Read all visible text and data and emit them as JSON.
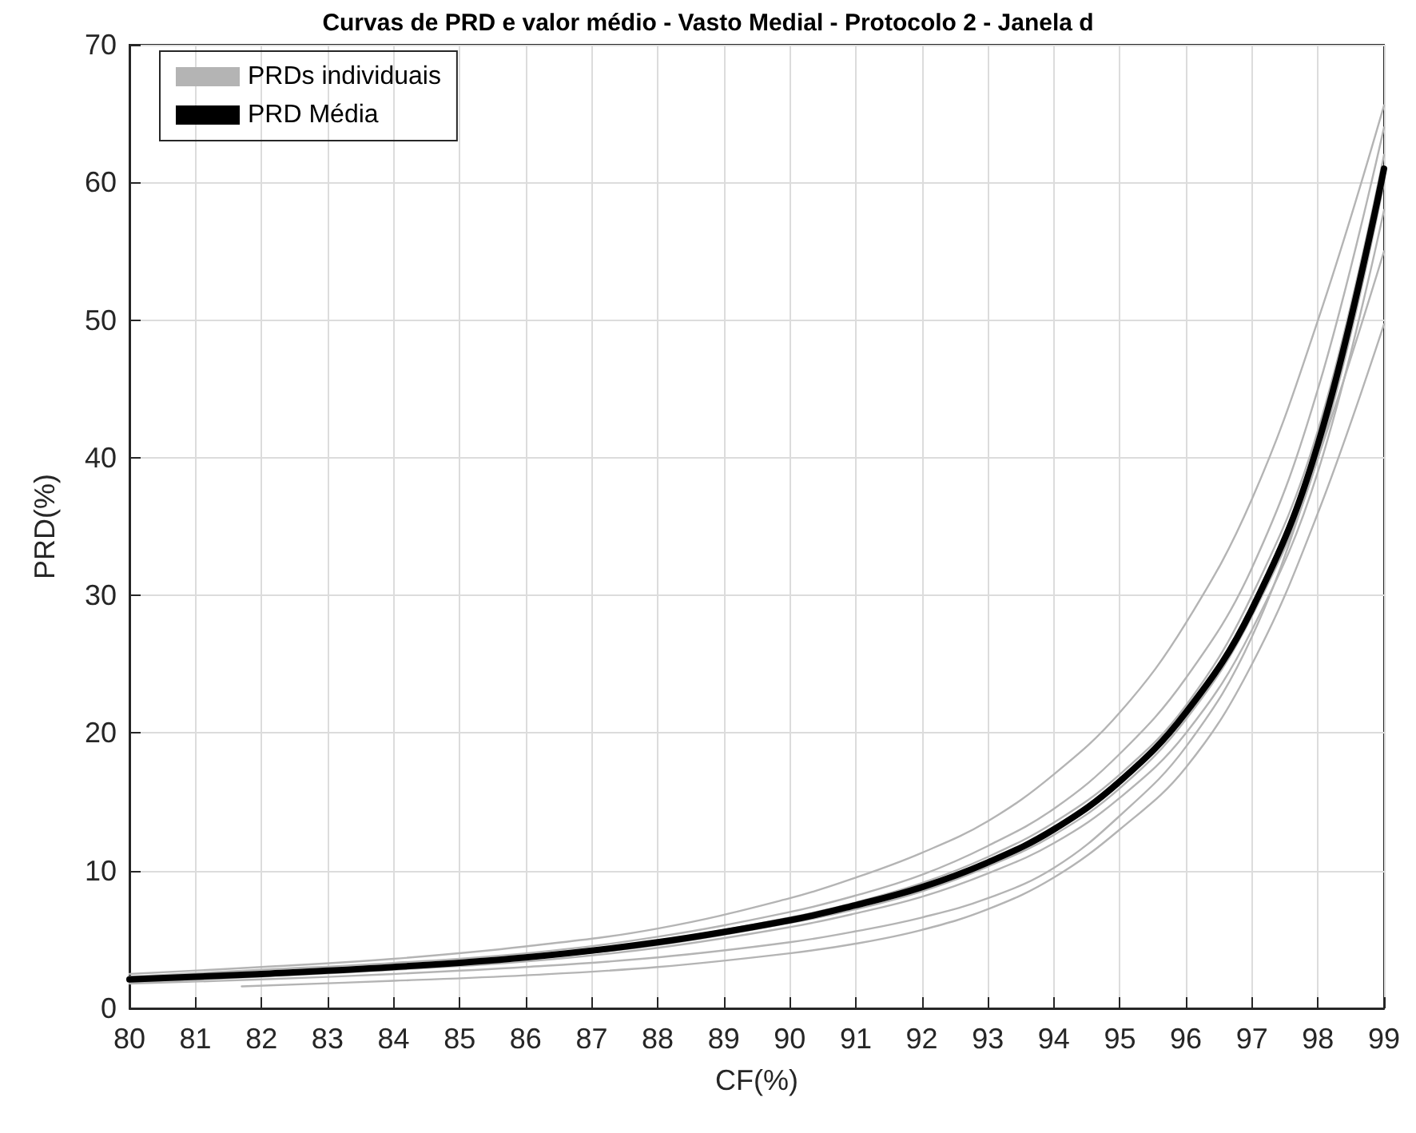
{
  "chart_data": {
    "type": "line",
    "title": "Curvas de PRD e valor médio - Vasto Medial - Protocolo 2 - Janela d",
    "xlabel": "CF(%)",
    "ylabel": "PRD(%)",
    "x": [
      80,
      82,
      84,
      86,
      88,
      90,
      91,
      92,
      93,
      94,
      95,
      96,
      97,
      98,
      99
    ],
    "xlim": [
      80,
      99
    ],
    "xticks": [
      80,
      81,
      82,
      83,
      84,
      85,
      86,
      87,
      88,
      89,
      90,
      91,
      92,
      93,
      94,
      95,
      96,
      97,
      98,
      99
    ],
    "ylim": [
      0,
      70
    ],
    "yticks": [
      0,
      10,
      20,
      30,
      40,
      50,
      60,
      70
    ],
    "grid": true,
    "legend": "top left",
    "marker": "none",
    "line_style": "solid",
    "series": [
      {
        "name": "PRDs individuais",
        "color": "#b4b4b4",
        "values": [
          2.5,
          3.0,
          3.6,
          4.5,
          5.8,
          8.0,
          9.5,
          11.3,
          13.6,
          17,
          21.5,
          28,
          37,
          50,
          65.6
        ]
      },
      {
        "color": "#b4b4b4",
        "values": [
          2.3,
          2.8,
          3.3,
          4.0,
          5.2,
          7.0,
          8.2,
          9.7,
          11.8,
          14.5,
          18.5,
          24,
          32,
          45,
          64
        ]
      },
      {
        "color": "#b4b4b4",
        "values": [
          2.2,
          2.6,
          3.1,
          3.8,
          4.9,
          6.6,
          7.7,
          9.1,
          11,
          13.5,
          17,
          22,
          30,
          42,
          62
        ]
      },
      {
        "color": "#b4b4b4",
        "values": [
          2.0,
          2.4,
          2.9,
          3.6,
          4.6,
          6.2,
          7.2,
          8.5,
          10.3,
          12.6,
          16,
          21,
          28.5,
          40,
          60
        ]
      },
      {
        "color": "#b4b4b4",
        "values": [
          1.9,
          2.3,
          2.8,
          3.4,
          4.4,
          5.9,
          6.9,
          8.1,
          9.8,
          12,
          15.3,
          20,
          27.5,
          39,
          58
        ]
      },
      {
        "color": "#b4b4b4",
        "values": [
          1.8,
          2.1,
          2.5,
          3.0,
          3.7,
          4.8,
          5.6,
          6.6,
          8.0,
          10.2,
          14.0,
          19,
          27,
          40,
          55
        ]
      },
      {
        "color": "#b4b4b4",
        "x": [
          81.7,
          84,
          86,
          88,
          90,
          91,
          92,
          93,
          94,
          95,
          96,
          97,
          98,
          99
        ],
        "values": [
          1.6,
          2.0,
          2.4,
          3.0,
          4.0,
          4.7,
          5.7,
          7.2,
          9.5,
          13,
          17.5,
          25,
          36,
          49.7
        ]
      },
      {
        "name": "PRD Média",
        "color": "#000000",
        "values": [
          2.1,
          2.5,
          3.0,
          3.7,
          4.8,
          6.4,
          7.5,
          8.8,
          10.6,
          13.0,
          16.5,
          21.5,
          29,
          41,
          61
        ]
      }
    ]
  }
}
